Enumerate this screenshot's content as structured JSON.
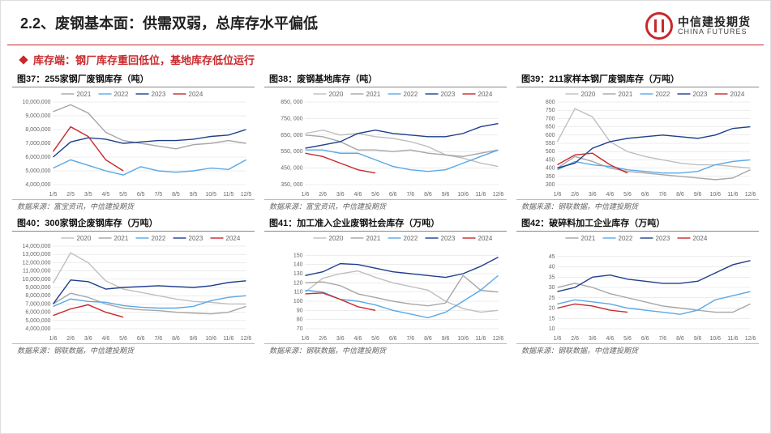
{
  "header": {
    "title": "2.2、废钢基本面：供需双弱，总库存水平偏低",
    "logo_cn": "中信建投期货",
    "logo_en": "CHINA FUTURES"
  },
  "sub": "库存端：钢厂库存重回低位，基地库存低位运行",
  "colors": {
    "2020": "#bfbfbf",
    "2021": "#a6a6a6",
    "2022": "#5aa8e6",
    "2023": "#1f3e8c",
    "2024": "#c9282b",
    "grid": "#d9d9d9",
    "axis": "#666666"
  },
  "xlabels": [
    "1/6",
    "2/6",
    "3/6",
    "4/6",
    "5/6",
    "6/6",
    "7/6",
    "8/6",
    "9/6",
    "10/6",
    "11/6",
    "12/6"
  ],
  "xlabels37": [
    "1/5",
    "2/5",
    "3/5",
    "4/5",
    "5/5",
    "6/5",
    "7/5",
    "8/5",
    "9/5",
    "10/5",
    "11/5",
    "12/5"
  ],
  "charts": [
    {
      "id": "c37",
      "title": "图37：255家钢厂废钢库存（吨）",
      "source": "数据来源：富宝资讯，中信建投期货",
      "ylim": [
        4000000,
        10000000
      ],
      "yticks": [
        4000000,
        5000000,
        6000000,
        7000000,
        8000000,
        9000000,
        10000000
      ],
      "ytick_labels": [
        "4,000,000",
        "5,000,000",
        "6,000,000",
        "7,000,000",
        "8,000,000",
        "9,000,000",
        "10,000,000"
      ],
      "legend": [
        "2021",
        "2022",
        "2023",
        "2024"
      ],
      "xkey": "xlabels37",
      "series": {
        "2021": [
          9300000,
          9800000,
          9200000,
          7800000,
          7200000,
          7000000,
          6800000,
          6600000,
          6900000,
          7000000,
          7200000,
          7000000
        ],
        "2022": [
          5200000,
          5800000,
          5400000,
          5000000,
          4700000,
          5300000,
          5000000,
          4900000,
          5000000,
          5200000,
          5100000,
          5800000
        ],
        "2023": [
          6000000,
          7100000,
          7400000,
          7300000,
          7000000,
          7100000,
          7200000,
          7200000,
          7300000,
          7500000,
          7600000,
          8000000
        ],
        "2024": [
          6400000,
          8200000,
          7500000,
          5800000,
          5000000
        ]
      }
    },
    {
      "id": "c38",
      "title": "图38：废钢基地库存（吨）",
      "source": "数据来源：富宝资讯，中信建投期货",
      "ylim": [
        350000,
        850000
      ],
      "yticks": [
        350000,
        450000,
        550000,
        650000,
        750000,
        850000
      ],
      "ytick_labels": [
        "350, 000",
        "450, 000",
        "550, 000",
        "650, 000",
        "750, 000",
        "850, 000"
      ],
      "legend": [
        "2020",
        "2021",
        "2022",
        "2023",
        "2024"
      ],
      "xkey": "xlabels",
      "series": {
        "2020": [
          660000,
          680000,
          650000,
          660000,
          640000,
          630000,
          610000,
          580000,
          530000,
          510000,
          480000,
          460000
        ],
        "2021": [
          650000,
          640000,
          610000,
          560000,
          560000,
          550000,
          560000,
          540000,
          530000,
          520000,
          540000,
          560000
        ],
        "2022": [
          560000,
          560000,
          540000,
          540000,
          500000,
          460000,
          440000,
          430000,
          440000,
          480000,
          520000,
          560000
        ],
        "2023": [
          570000,
          590000,
          610000,
          660000,
          680000,
          660000,
          650000,
          640000,
          640000,
          660000,
          700000,
          720000
        ],
        "2024": [
          540000,
          520000,
          480000,
          440000,
          420000
        ]
      }
    },
    {
      "id": "c39",
      "title": "图39：211家样本钢厂废钢库存（万吨）",
      "source": "数据来源：钢联数据，中信建投期货",
      "ylim": [
        300,
        800
      ],
      "yticks": [
        300,
        350,
        400,
        450,
        500,
        550,
        600,
        650,
        700,
        750,
        800
      ],
      "ytick_labels": [
        "300",
        "350",
        "400",
        "450",
        "500",
        "550",
        "600",
        "650",
        "700",
        "750",
        "800"
      ],
      "legend": [
        "2020",
        "2021",
        "2022",
        "2023",
        "2024"
      ],
      "xkey": "xlabels",
      "series": {
        "2020": [
          560,
          760,
          710,
          560,
          500,
          470,
          450,
          430,
          420,
          420,
          410,
          400
        ],
        "2021": [
          400,
          470,
          440,
          400,
          380,
          370,
          360,
          350,
          340,
          330,
          340,
          390
        ],
        "2022": [
          390,
          440,
          420,
          410,
          390,
          380,
          370,
          370,
          380,
          420,
          440,
          450
        ],
        "2023": [
          400,
          430,
          520,
          560,
          580,
          590,
          600,
          590,
          580,
          600,
          640,
          650
        ],
        "2024": [
          420,
          480,
          490,
          420,
          370
        ]
      }
    },
    {
      "id": "c40",
      "title": "图40：300家钢企废钢库存（万吨）",
      "source": "数据来源：钢联数据，中信建投期货",
      "ylim": [
        4000000,
        14000000
      ],
      "yticks": [
        4000000,
        5000000,
        6000000,
        7000000,
        8000000,
        9000000,
        10000000,
        11000000,
        12000000,
        13000000,
        14000000
      ],
      "ytick_labels": [
        "4,000,000",
        "5,000,000",
        "6,000,000",
        "7,000,000",
        "8,000,000",
        "9,000,000",
        "10,000,000",
        "11,000,000",
        "12,000,000",
        "13,000,000",
        "14,000,000"
      ],
      "legend": [
        "2020",
        "2021",
        "2022",
        "2023",
        "2024"
      ],
      "xkey": "xlabels",
      "series": {
        "2020": [
          9500000,
          13200000,
          12000000,
          9800000,
          8800000,
          8400000,
          8000000,
          7600000,
          7300000,
          7200000,
          7000000,
          7000000
        ],
        "2021": [
          7000000,
          8300000,
          7800000,
          7000000,
          6500000,
          6300000,
          6200000,
          6000000,
          5900000,
          5800000,
          6000000,
          6700000
        ],
        "2022": [
          6700000,
          7600000,
          7300000,
          7200000,
          6800000,
          6600000,
          6500000,
          6500000,
          6700000,
          7400000,
          7800000,
          8000000
        ],
        "2023": [
          7000000,
          9900000,
          9700000,
          8800000,
          9000000,
          9100000,
          9200000,
          9100000,
          9000000,
          9200000,
          9600000,
          9800000
        ],
        "2024": [
          5600000,
          6400000,
          6900000,
          6000000,
          5400000
        ]
      }
    },
    {
      "id": "c41",
      "title": "图41：加工准入企业废钢社会库存（万吨）",
      "source": "数据来源：钢联数据，中信建投期货",
      "ylim": [
        70,
        160
      ],
      "yticks": [
        70,
        80,
        90,
        100,
        110,
        120,
        130,
        140,
        150
      ],
      "ytick_labels": [
        "70",
        "80",
        "90",
        "100",
        "110",
        "120",
        "130",
        "140",
        "150"
      ],
      "legend": [
        "2020",
        "2021",
        "2022",
        "2023",
        "2024"
      ],
      "xkey": "xlabels",
      "series": {
        "2020": [
          110,
          125,
          130,
          133,
          126,
          120,
          116,
          112,
          100,
          92,
          88,
          90
        ],
        "2021": [
          120,
          121,
          117,
          108,
          104,
          100,
          97,
          95,
          98,
          128,
          112,
          110
        ],
        "2022": [
          112,
          110,
          102,
          100,
          96,
          90,
          86,
          82,
          88,
          100,
          112,
          128
        ],
        "2023": [
          128,
          132,
          141,
          140,
          136,
          132,
          130,
          128,
          126,
          130,
          138,
          148
        ],
        "2024": [
          108,
          109,
          102,
          94,
          90
        ]
      }
    },
    {
      "id": "c42",
      "title": "图42：破碎料加工企业库存（万吨）",
      "source": "数据来源：钢联数据，中信建投期货",
      "ylim": [
        10,
        50
      ],
      "yticks": [
        10,
        15,
        20,
        25,
        30,
        35,
        40,
        45
      ],
      "ytick_labels": [
        "10",
        "15",
        "20",
        "25",
        "30",
        "35",
        "40",
        "45"
      ],
      "legend": [
        "2021",
        "2022",
        "2023",
        "2024"
      ],
      "xkey": "xlabels",
      "series": {
        "2021": [
          30,
          32,
          30,
          27,
          25,
          23,
          21,
          20,
          19,
          18,
          18,
          22
        ],
        "2022": [
          22,
          24,
          23,
          22,
          20,
          19,
          18,
          17,
          19,
          24,
          26,
          28
        ],
        "2023": [
          28,
          30,
          35,
          36,
          34,
          33,
          32,
          32,
          33,
          37,
          41,
          43
        ],
        "2024": [
          20,
          22,
          21,
          19,
          18
        ]
      }
    }
  ]
}
